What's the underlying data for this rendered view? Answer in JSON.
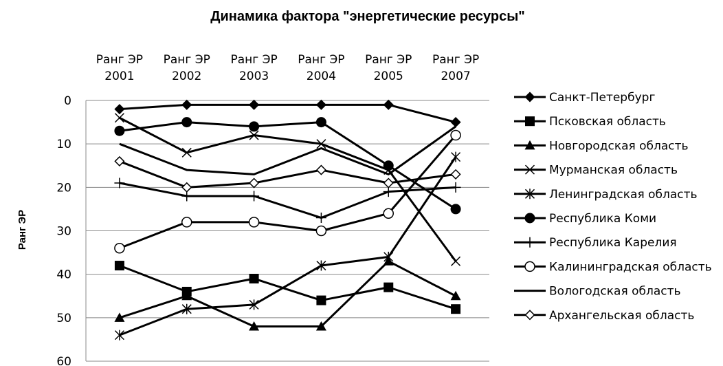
{
  "chart_data": {
    "type": "line",
    "title": "Динамика фактора \"энергетические ресурсы\"",
    "ylabel": "Ранг ЭР",
    "xlabel": "",
    "categories": [
      [
        "Ранг ЭР",
        "2001"
      ],
      [
        "Ранг ЭР",
        "2002"
      ],
      [
        "Ранг ЭР",
        "2003"
      ],
      [
        "Ранг ЭР",
        "2004"
      ],
      [
        "Ранг ЭР",
        "2005"
      ],
      [
        "Ранг ЭР",
        "2007"
      ]
    ],
    "ylim": [
      0,
      60
    ],
    "y_inverted": true,
    "yticks": [
      "0",
      "10",
      "20",
      "30",
      "40",
      "50",
      "60"
    ],
    "grid": true,
    "legend_position": "right",
    "series": [
      {
        "name": "Санкт-Петербург",
        "marker": "diamond-filled",
        "values": [
          2,
          1,
          1,
          1,
          1,
          5
        ]
      },
      {
        "name": "Псковская область",
        "marker": "square-filled",
        "values": [
          38,
          44,
          41,
          46,
          43,
          48
        ]
      },
      {
        "name": "Новгородская область",
        "marker": "triangle-filled",
        "values": [
          50,
          45,
          52,
          52,
          37,
          45
        ]
      },
      {
        "name": "Мурманская область",
        "marker": "x",
        "values": [
          4,
          12,
          8,
          10,
          16,
          37
        ]
      },
      {
        "name": "Ленинградская область",
        "marker": "asterisk",
        "values": [
          54,
          48,
          47,
          38,
          36,
          13
        ]
      },
      {
        "name": "Республика Коми",
        "marker": "circle-filled",
        "values": [
          7,
          5,
          6,
          5,
          15,
          25
        ]
      },
      {
        "name": "Республика Карелия",
        "marker": "plus",
        "values": [
          19,
          22,
          22,
          27,
          21,
          20
        ]
      },
      {
        "name": "Калининградская область",
        "marker": "circle-open",
        "values": [
          34,
          28,
          28,
          30,
          26,
          8
        ]
      },
      {
        "name": "Вологодская область",
        "marker": "none",
        "values": [
          10,
          16,
          17,
          11,
          17,
          6
        ]
      },
      {
        "name": "Архангельская область",
        "marker": "diamond-open",
        "values": [
          14,
          20,
          19,
          16,
          19,
          17
        ]
      }
    ]
  }
}
